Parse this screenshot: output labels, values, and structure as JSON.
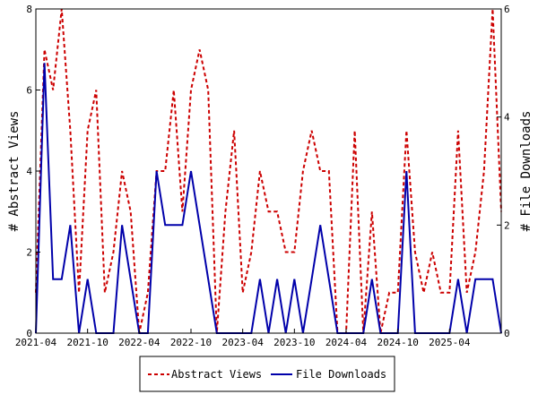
{
  "chart_data": {
    "type": "line",
    "x_start": "2021-04",
    "x_end": "2025-10",
    "xticks": [
      "2021-04",
      "2021-10",
      "2022-04",
      "2022-10",
      "2023-04",
      "2023-10",
      "2024-04",
      "2024-10",
      "2025-04"
    ],
    "ylabel_left": "# Abstract Views",
    "ylabel_right": "# File Downloads",
    "ylim_left": [
      0,
      8
    ],
    "ylim_right": [
      0,
      6
    ],
    "yticks_left": [
      "0",
      "2",
      "4",
      "6",
      "8"
    ],
    "yticks_right": [
      "0",
      "2",
      "4",
      "6"
    ],
    "grid": false,
    "legend_position": "bottom",
    "series": [
      {
        "name": "Abstract Views",
        "axis": "left",
        "color": "#cc0000",
        "dash": true,
        "values": [
          1,
          7,
          6,
          8,
          5,
          1,
          5,
          6,
          1,
          2,
          4,
          3,
          0,
          1,
          4,
          4,
          6,
          3,
          6,
          7,
          6,
          0,
          3,
          5,
          1,
          2,
          4,
          3,
          3,
          2,
          2,
          4,
          5,
          4,
          4,
          0,
          0,
          5,
          0,
          3,
          0,
          1,
          1,
          5,
          2,
          1,
          2,
          1,
          1,
          5,
          1,
          2,
          4,
          8,
          3
        ]
      },
      {
        "name": "File Downloads",
        "axis": "right",
        "color": "#0000aa",
        "dash": false,
        "values": [
          0,
          5,
          1,
          1,
          2,
          0,
          1,
          0,
          0,
          0,
          2,
          1,
          0,
          0,
          3,
          2,
          2,
          2,
          3,
          2,
          1,
          0,
          0,
          0,
          0,
          0,
          1,
          0,
          1,
          0,
          1,
          0,
          1,
          2,
          1,
          0,
          0,
          0,
          0,
          1,
          0,
          0,
          0,
          3,
          0,
          0,
          0,
          0,
          0,
          1,
          0,
          1,
          1,
          1,
          0
        ]
      }
    ]
  }
}
